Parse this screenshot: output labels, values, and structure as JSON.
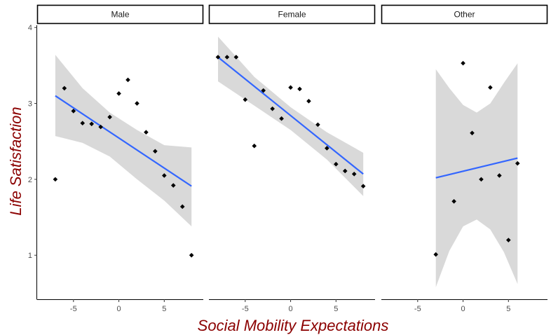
{
  "chart_data": {
    "type": "scatter",
    "xlabel": "Social Mobility Expectations",
    "ylabel": "Life Satisfaction",
    "xlim": [
      -9,
      9.3
    ],
    "ylim": [
      0.42,
      4.03
    ],
    "x_ticks": [
      -5,
      0,
      5
    ],
    "y_ticks": [
      1,
      2,
      3,
      4
    ],
    "grid": false,
    "facets": [
      "Male",
      "Female",
      "Other"
    ],
    "colors": {
      "points": "#000000",
      "fit_line": "#3366ff",
      "band": "#d9d9d9",
      "axis_title": "#8b0000"
    },
    "panels": [
      {
        "name": "Male",
        "points": [
          {
            "x": -7,
            "y": 2.0
          },
          {
            "x": -6,
            "y": 3.2
          },
          {
            "x": -5,
            "y": 2.9
          },
          {
            "x": -4,
            "y": 2.74
          },
          {
            "x": -3,
            "y": 2.73
          },
          {
            "x": -2,
            "y": 2.69
          },
          {
            "x": -1,
            "y": 2.82
          },
          {
            "x": 0,
            "y": 3.13
          },
          {
            "x": 1,
            "y": 3.31
          },
          {
            "x": 2,
            "y": 3.0
          },
          {
            "x": 3,
            "y": 2.62
          },
          {
            "x": 4,
            "y": 2.37
          },
          {
            "x": 5,
            "y": 2.05
          },
          {
            "x": 6,
            "y": 1.92
          },
          {
            "x": 7,
            "y": 1.64
          },
          {
            "x": 8,
            "y": 1.0
          }
        ],
        "fit": {
          "x": [
            -7,
            8
          ],
          "y": [
            3.1,
            1.91
          ]
        },
        "band": {
          "x": [
            -7,
            -4,
            -1,
            2,
            5,
            8
          ],
          "lower": [
            2.57,
            2.48,
            2.3,
            2.0,
            1.72,
            1.38
          ],
          "upper": [
            3.64,
            3.2,
            2.88,
            2.65,
            2.45,
            2.42
          ]
        }
      },
      {
        "name": "Female",
        "points": [
          {
            "x": -8,
            "y": 3.61
          },
          {
            "x": -7,
            "y": 3.61
          },
          {
            "x": -6,
            "y": 3.61
          },
          {
            "x": -5,
            "y": 3.05
          },
          {
            "x": -4,
            "y": 2.44
          },
          {
            "x": -3,
            "y": 3.17
          },
          {
            "x": -2,
            "y": 2.93
          },
          {
            "x": -1,
            "y": 2.8
          },
          {
            "x": 0,
            "y": 3.21
          },
          {
            "x": 1,
            "y": 3.19
          },
          {
            "x": 2,
            "y": 3.03
          },
          {
            "x": 3,
            "y": 2.72
          },
          {
            "x": 4,
            "y": 2.41
          },
          {
            "x": 5,
            "y": 2.2
          },
          {
            "x": 6,
            "y": 2.11
          },
          {
            "x": 7,
            "y": 2.07
          },
          {
            "x": 8,
            "y": 1.91
          }
        ],
        "fit": {
          "x": [
            -8,
            8
          ],
          "y": [
            3.61,
            2.07
          ]
        },
        "band": {
          "x": [
            -8,
            -4,
            0,
            4,
            8
          ],
          "lower": [
            3.29,
            2.97,
            2.65,
            2.26,
            1.78
          ],
          "upper": [
            3.88,
            3.35,
            2.95,
            2.62,
            2.35
          ]
        }
      },
      {
        "name": "Other",
        "points": [
          {
            "x": -3,
            "y": 1.01
          },
          {
            "x": -1,
            "y": 1.71
          },
          {
            "x": 0,
            "y": 3.53
          },
          {
            "x": 1,
            "y": 2.61
          },
          {
            "x": 2,
            "y": 2.0
          },
          {
            "x": 3,
            "y": 3.21
          },
          {
            "x": 4,
            "y": 2.05
          },
          {
            "x": 5,
            "y": 1.2
          },
          {
            "x": 6,
            "y": 2.21
          }
        ],
        "fit": {
          "x": [
            -3,
            6
          ],
          "y": [
            2.02,
            2.28
          ]
        },
        "band": {
          "x": [
            -3,
            -1.5,
            0,
            1.5,
            3,
            4.5,
            6
          ],
          "lower": [
            0.58,
            1.06,
            1.38,
            1.47,
            1.34,
            1.04,
            0.62
          ],
          "upper": [
            3.45,
            3.2,
            2.98,
            2.88,
            3.0,
            3.27,
            3.53
          ]
        }
      }
    ]
  }
}
